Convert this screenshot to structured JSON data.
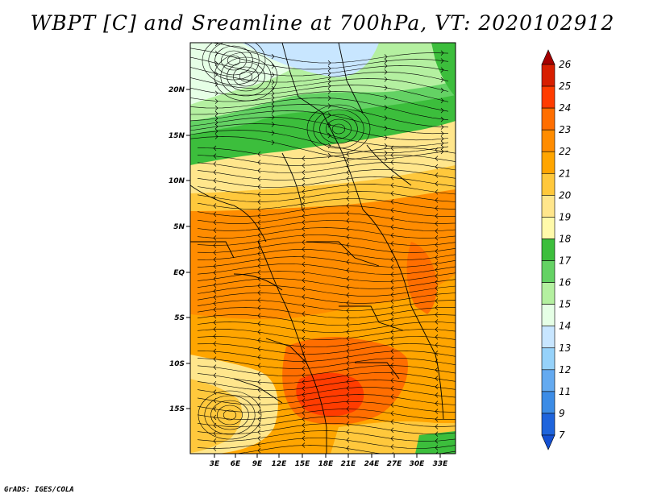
{
  "title": "WBPT [C] and Sreamline at 700hPa, VT: 2020102912",
  "footer": "GrADS: IGES/COLA",
  "map": {
    "lat_labels": [
      "20N",
      "15N",
      "10N",
      "5N",
      "EQ",
      "5S",
      "10S",
      "15S"
    ],
    "lon_labels": [
      "3E",
      "6E",
      "9E",
      "12E",
      "15E",
      "18E",
      "21E",
      "24E",
      "27E",
      "30E",
      "33E"
    ],
    "lat_range": [
      -20,
      24
    ],
    "lon_range": [
      0,
      35
    ]
  },
  "colorbar": {
    "labels": [
      "26",
      "25",
      "24",
      "23",
      "22",
      "21",
      "20",
      "19",
      "18",
      "17",
      "16",
      "15",
      "14",
      "13",
      "12",
      "11",
      "9",
      "7"
    ],
    "colors": [
      "#a50000",
      "#d71e00",
      "#ff3c00",
      "#ff6e00",
      "#ff8c00",
      "#ffa500",
      "#ffc83c",
      "#ffe68c",
      "#fffaaa",
      "#3cbe3c",
      "#64d264",
      "#b4f0a0",
      "#e6ffe6",
      "#c8e6ff",
      "#96d2fa",
      "#64aaf0",
      "#3c8ce6",
      "#1e64dc",
      "#1450d2"
    ]
  },
  "field": {
    "bands": [
      {
        "name": "north-cool",
        "color": "#b4f0a0"
      },
      {
        "name": "north-light",
        "color": "#e6ffe6"
      },
      {
        "name": "north-blue",
        "color": "#c8e6ff"
      },
      {
        "name": "green-belt",
        "color": "#3cbe3c"
      },
      {
        "name": "green-light",
        "color": "#64d264"
      },
      {
        "name": "yellow-belt",
        "color": "#ffe68c"
      },
      {
        "name": "orange-light",
        "color": "#ffc83c"
      },
      {
        "name": "orange",
        "color": "#ffa500"
      },
      {
        "name": "orange-dark",
        "color": "#ff8c00"
      },
      {
        "name": "red-orange",
        "color": "#ff6e00"
      },
      {
        "name": "red",
        "color": "#ff3c00"
      }
    ]
  }
}
